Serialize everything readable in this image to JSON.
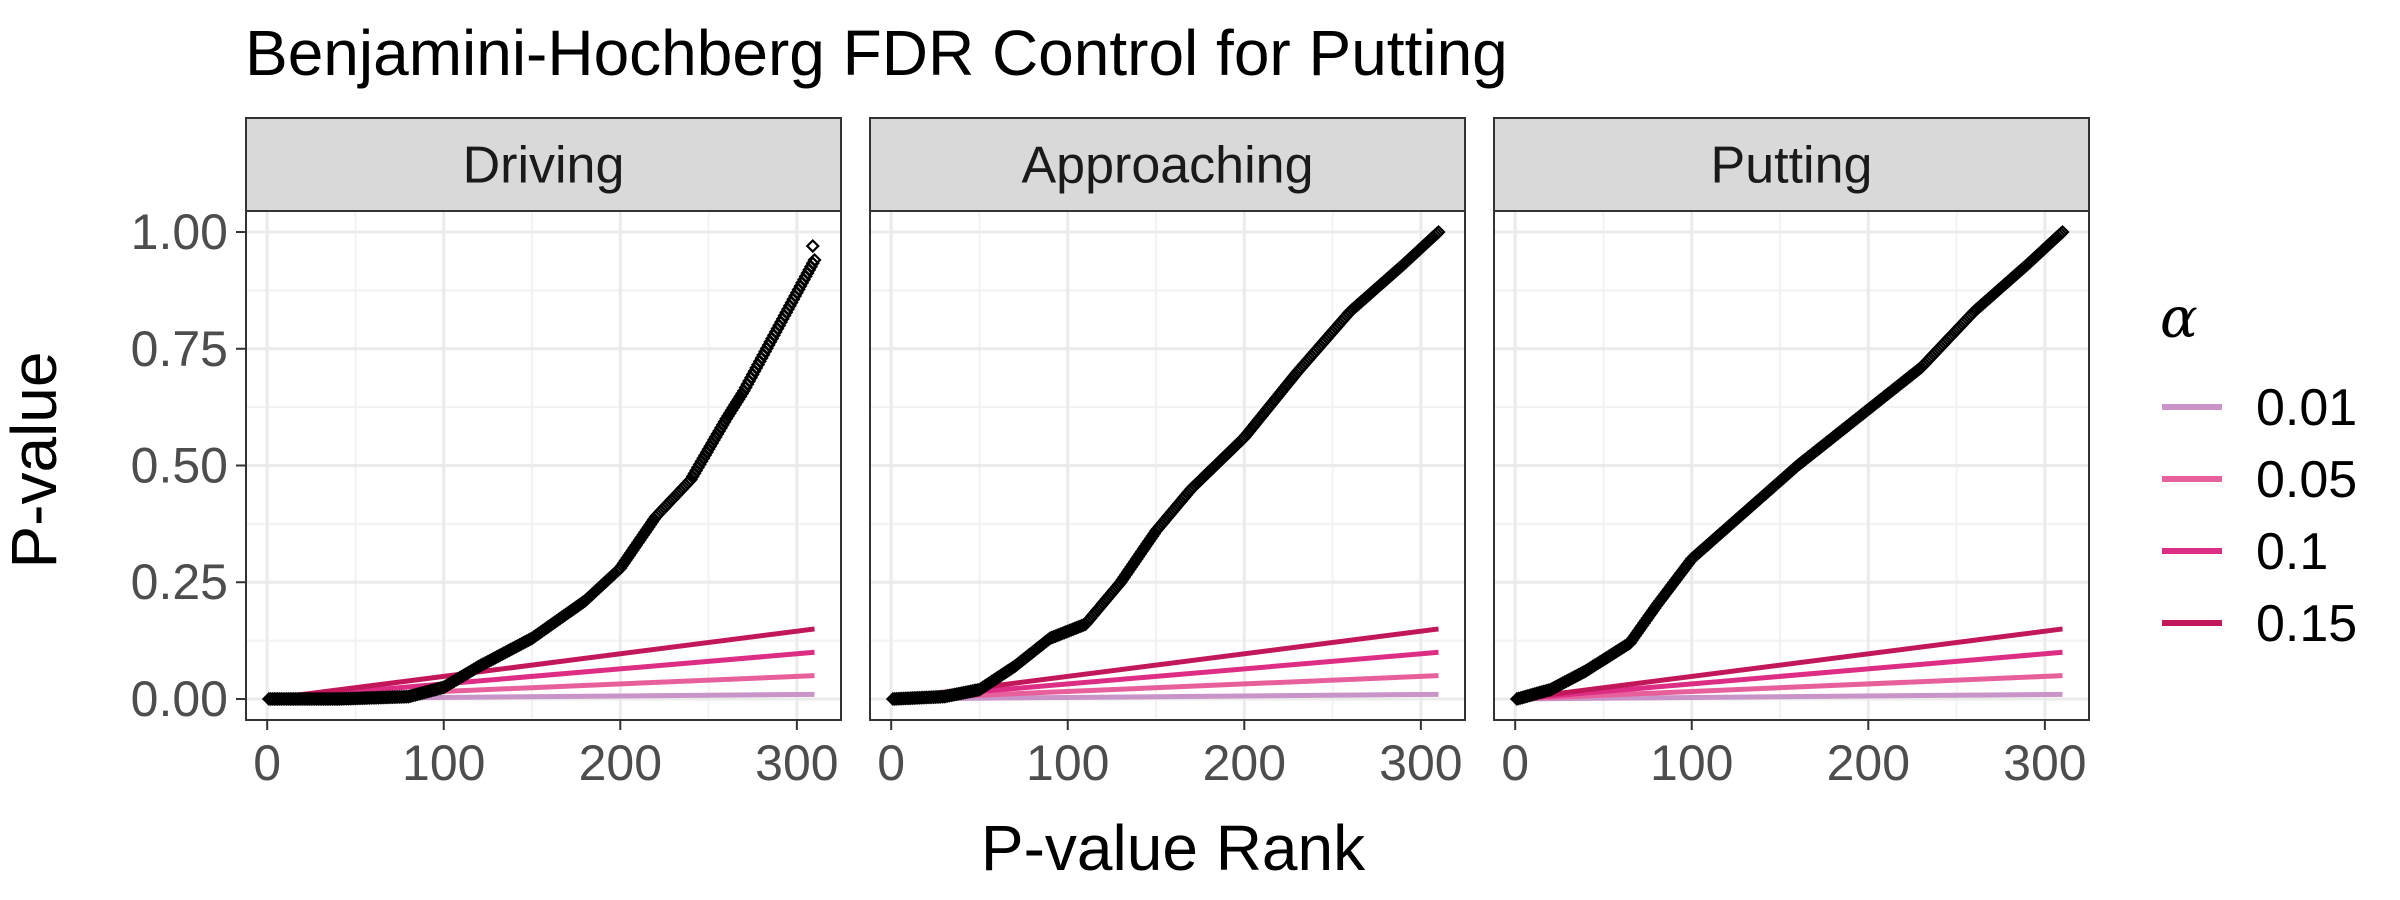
{
  "chart_data": {
    "type": "scatter",
    "title": "Benjamini-Hochberg FDR Control for Putting",
    "xlabel": "P-value Rank",
    "ylabel": "P-value",
    "xlim": [
      -12,
      325
    ],
    "ylim": [
      -0.045,
      1.045
    ],
    "x_ticks": [
      0,
      100,
      200,
      300
    ],
    "y_ticks": [
      0.0,
      0.25,
      0.5,
      0.75,
      1.0
    ],
    "x_tick_labels": [
      "0",
      "100",
      "200",
      "300"
    ],
    "y_tick_labels": [
      "0.00",
      "0.25",
      "0.50",
      "0.75",
      "1.00"
    ],
    "grid": true,
    "n_points": 310,
    "panels": [
      {
        "name": "Driving",
        "pvalue_curve": [
          [
            1,
            0.0
          ],
          [
            40,
            0.0
          ],
          [
            80,
            0.005
          ],
          [
            100,
            0.025
          ],
          [
            120,
            0.07
          ],
          [
            150,
            0.13
          ],
          [
            180,
            0.21
          ],
          [
            200,
            0.28
          ],
          [
            220,
            0.39
          ],
          [
            240,
            0.47
          ],
          [
            260,
            0.6
          ],
          [
            270,
            0.66
          ],
          [
            290,
            0.8
          ],
          [
            310,
            0.94
          ]
        ],
        "max_point": [
          309,
          0.97
        ]
      },
      {
        "name": "Approaching",
        "pvalue_curve": [
          [
            1,
            0.0
          ],
          [
            30,
            0.005
          ],
          [
            50,
            0.02
          ],
          [
            70,
            0.07
          ],
          [
            90,
            0.13
          ],
          [
            110,
            0.16
          ],
          [
            130,
            0.25
          ],
          [
            150,
            0.36
          ],
          [
            170,
            0.45
          ],
          [
            200,
            0.56
          ],
          [
            230,
            0.7
          ],
          [
            260,
            0.83
          ],
          [
            290,
            0.93
          ],
          [
            310,
            1.0
          ]
        ]
      },
      {
        "name": "Putting",
        "pvalue_curve": [
          [
            1,
            0.0
          ],
          [
            20,
            0.02
          ],
          [
            40,
            0.06
          ],
          [
            65,
            0.12
          ],
          [
            80,
            0.2
          ],
          [
            100,
            0.3
          ],
          [
            130,
            0.4
          ],
          [
            160,
            0.5
          ],
          [
            200,
            0.62
          ],
          [
            230,
            0.71
          ],
          [
            260,
            0.83
          ],
          [
            290,
            0.93
          ],
          [
            310,
            1.0
          ]
        ]
      }
    ],
    "legend": {
      "title": "α",
      "position": "right",
      "entries": [
        {
          "label": "0.01",
          "alpha": 0.01,
          "color": "#C994C7"
        },
        {
          "label": "0.05",
          "alpha": 0.05,
          "color": "#E7609C"
        },
        {
          "label": "0.1",
          "alpha": 0.1,
          "color": "#DD2D85"
        },
        {
          "label": "0.15",
          "alpha": 0.15,
          "color": "#C2185B"
        }
      ]
    },
    "point_color": "#000000"
  }
}
